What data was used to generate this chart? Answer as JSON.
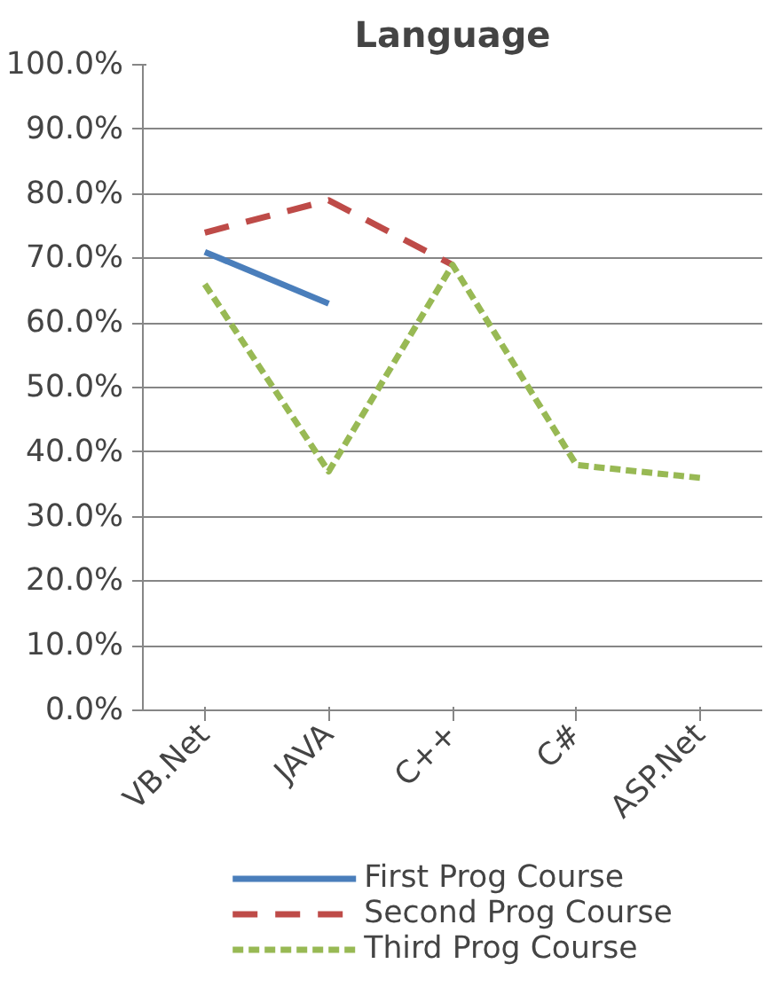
{
  "chart_data": {
    "type": "line",
    "title": "Language",
    "categories": [
      "VB.Net",
      "JAVA",
      "C++",
      "C#",
      "ASP.Net"
    ],
    "series": [
      {
        "name": "First Prog Course",
        "color": "#4a7ebb",
        "line_style": "solid",
        "values": [
          71,
          63,
          null,
          null,
          null
        ]
      },
      {
        "name": "Second Prog Course",
        "color": "#be4b48",
        "line_style": "dashed",
        "values": [
          74,
          79,
          69,
          null,
          null
        ]
      },
      {
        "name": "Third Prog Course",
        "color": "#98b954",
        "line_style": "dotted",
        "values": [
          66,
          37,
          69,
          38,
          36
        ]
      }
    ],
    "ylim": [
      0,
      100
    ],
    "yticks": [
      {
        "value": 0,
        "label": "0.0%"
      },
      {
        "value": 10,
        "label": "10.0%"
      },
      {
        "value": 20,
        "label": "20.0%"
      },
      {
        "value": 30,
        "label": "30.0%"
      },
      {
        "value": 40,
        "label": "40.0%"
      },
      {
        "value": 50,
        "label": "50.0%"
      },
      {
        "value": 60,
        "label": "60.0%"
      },
      {
        "value": 70,
        "label": "70.0%"
      },
      {
        "value": 80,
        "label": "80.0%"
      },
      {
        "value": 90,
        "label": "90.0%"
      },
      {
        "value": 100,
        "label": "100.0%"
      }
    ],
    "grid": "y",
    "legend": "bottom"
  }
}
